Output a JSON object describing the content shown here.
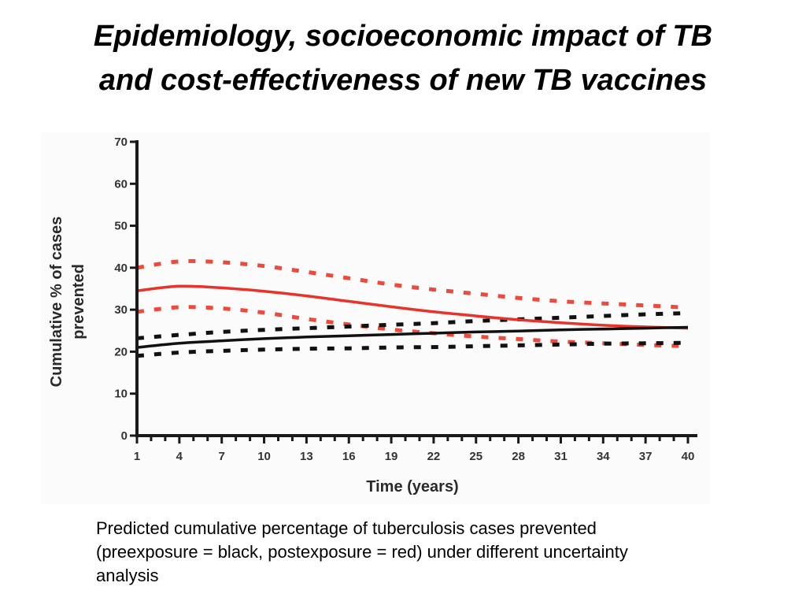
{
  "slide": {
    "title_lines": [
      "Epidemiology, socioeconomic impact of TB",
      "and cost-effectiveness of new TB vaccines"
    ],
    "caption_lines": [
      "Predicted cumulative percentage of tuberculosis cases prevented",
      "(preexposure = black, postexposure = red) under different uncertainty",
      "analysis"
    ]
  },
  "chart_data": {
    "type": "line",
    "title": "",
    "xlabel": "Time (years)",
    "ylabel_lines": [
      "Cumulative % of  cases",
      "prevented"
    ],
    "xlim": [
      1,
      40
    ],
    "ylim": [
      0,
      70
    ],
    "x_ticks": [
      1,
      4,
      7,
      10,
      13,
      16,
      19,
      22,
      25,
      28,
      31,
      34,
      37,
      40
    ],
    "y_ticks": [
      0,
      10,
      20,
      30,
      40,
      50,
      60,
      70
    ],
    "grid": false,
    "legend": "none",
    "colors": {
      "postexposure": "#e8332a",
      "postexposure_bounds": "#ee4a3c",
      "preexposure": "#111111",
      "axis": "#1a1a1a",
      "tick_label": "#333333",
      "plot_background": "#fbfbfb"
    },
    "series": [
      {
        "group": "postexposure",
        "style": "solid",
        "x": [
          1,
          4,
          7,
          10,
          13,
          16,
          19,
          22,
          25,
          28,
          31,
          34,
          37,
          40
        ],
        "y": [
          34.5,
          35.6,
          35.2,
          34.4,
          33.3,
          32.0,
          30.7,
          29.5,
          28.5,
          27.6,
          26.9,
          26.3,
          25.9,
          25.6
        ]
      },
      {
        "group": "postexposure",
        "style": "dotted",
        "x": [
          1,
          4,
          7,
          10,
          13,
          16,
          19,
          22,
          25,
          28,
          31,
          34,
          37,
          40
        ],
        "y": [
          40.0,
          41.5,
          41.3,
          40.4,
          39.0,
          37.5,
          36.0,
          34.8,
          33.8,
          32.8,
          32.0,
          31.5,
          31.0,
          30.5
        ]
      },
      {
        "group": "postexposure",
        "style": "dotted",
        "x": [
          1,
          4,
          7,
          10,
          13,
          16,
          19,
          22,
          25,
          28,
          31,
          34,
          37,
          40
        ],
        "y": [
          29.5,
          30.6,
          30.3,
          29.3,
          27.8,
          26.5,
          25.3,
          24.4,
          23.6,
          23.0,
          22.4,
          22.0,
          21.6,
          21.3
        ]
      },
      {
        "group": "preexposure",
        "style": "solid",
        "x": [
          1,
          4,
          7,
          10,
          13,
          16,
          19,
          22,
          25,
          28,
          31,
          34,
          37,
          40
        ],
        "y": [
          21.0,
          22.0,
          22.6,
          23.1,
          23.5,
          23.8,
          24.1,
          24.4,
          24.7,
          24.9,
          25.2,
          25.4,
          25.6,
          25.8
        ]
      },
      {
        "group": "preexposure",
        "style": "dotted",
        "x": [
          1,
          4,
          7,
          10,
          13,
          16,
          19,
          22,
          25,
          28,
          31,
          34,
          37,
          40
        ],
        "y": [
          23.2,
          24.0,
          24.7,
          25.2,
          25.6,
          26.0,
          26.4,
          26.8,
          27.3,
          27.7,
          28.1,
          28.5,
          28.9,
          29.2
        ]
      },
      {
        "group": "preexposure",
        "style": "dotted",
        "x": [
          1,
          4,
          7,
          10,
          13,
          16,
          19,
          22,
          25,
          28,
          31,
          34,
          37,
          40
        ],
        "y": [
          19.0,
          19.8,
          20.2,
          20.5,
          20.7,
          20.8,
          21.0,
          21.1,
          21.3,
          21.5,
          21.7,
          21.9,
          22.0,
          22.1
        ]
      }
    ]
  }
}
